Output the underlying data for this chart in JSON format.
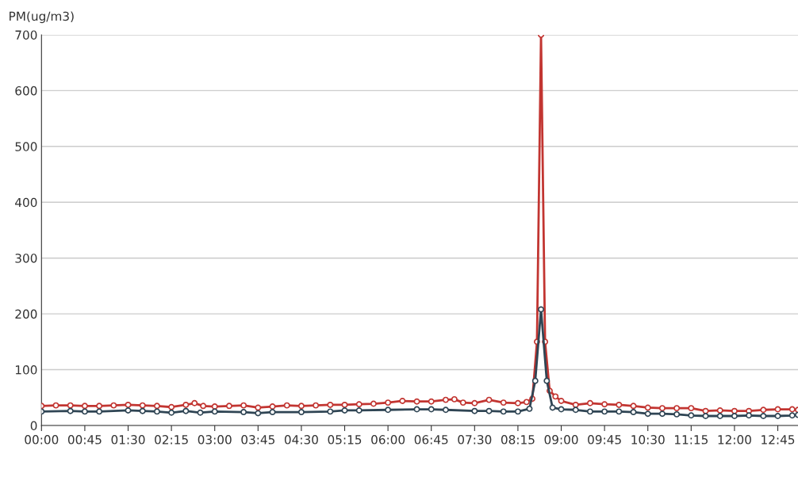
{
  "chart_data": {
    "type": "line",
    "ylabel": "PM(ug/m3)",
    "marker": "circle",
    "grid": "y",
    "xlim": [
      0,
      13.1
    ],
    "ylim": [
      0,
      700
    ],
    "yticks": [
      0,
      100,
      200,
      300,
      400,
      500,
      600,
      700
    ],
    "xticks": [
      {
        "value": 0,
        "label": "00:00"
      },
      {
        "value": 0.75,
        "label": "00:45"
      },
      {
        "value": 1.5,
        "label": "01:30"
      },
      {
        "value": 2.25,
        "label": "02:15"
      },
      {
        "value": 3,
        "label": "03:00"
      },
      {
        "value": 3.75,
        "label": "03:45"
      },
      {
        "value": 4.5,
        "label": "04:30"
      },
      {
        "value": 5.25,
        "label": "05:15"
      },
      {
        "value": 6,
        "label": "06:00"
      },
      {
        "value": 6.75,
        "label": "06:45"
      },
      {
        "value": 7.5,
        "label": "07:30"
      },
      {
        "value": 8.25,
        "label": "08:15"
      },
      {
        "value": 9,
        "label": "09:00"
      },
      {
        "value": 9.75,
        "label": "09:45"
      },
      {
        "value": 10.5,
        "label": "10:30"
      },
      {
        "value": 11.25,
        "label": "11:15"
      },
      {
        "value": 12,
        "label": "12:00"
      },
      {
        "value": 12.75,
        "label": "12:45"
      }
    ],
    "series": [
      {
        "color": "#c23531",
        "x": [
          0,
          0.25,
          0.5,
          0.75,
          1,
          1.25,
          1.5,
          1.75,
          2,
          2.25,
          2.5,
          2.65,
          2.8,
          3,
          3.25,
          3.5,
          3.75,
          4,
          4.25,
          4.5,
          4.75,
          5,
          5.25,
          5.5,
          5.75,
          6,
          6.25,
          6.5,
          6.75,
          7,
          7.15,
          7.3,
          7.5,
          7.75,
          8,
          8.25,
          8.4,
          8.5,
          8.58,
          8.65,
          8.72,
          8.8,
          8.9,
          9,
          9.25,
          9.5,
          9.75,
          10,
          10.25,
          10.5,
          10.75,
          11,
          11.25,
          11.5,
          11.75,
          12,
          12.25,
          12.5,
          12.75,
          13,
          13.1
        ],
        "values": [
          35,
          36,
          36,
          35,
          35,
          36,
          37,
          36,
          35,
          33,
          37,
          40,
          35,
          34,
          35,
          36,
          32,
          34,
          36,
          35,
          36,
          37,
          37,
          38,
          39,
          41,
          44,
          43,
          43,
          46,
          47,
          41,
          40,
          46,
          41,
          40,
          42,
          48,
          150,
          700,
          150,
          62,
          52,
          44,
          37,
          40,
          38,
          37,
          35,
          32,
          31,
          31,
          31,
          26,
          27,
          26,
          26,
          28,
          29,
          29,
          28
        ]
      },
      {
        "color": "#2f4554",
        "x": [
          0,
          0.5,
          0.75,
          1,
          1.5,
          1.75,
          2,
          2.25,
          2.5,
          2.75,
          3,
          3.5,
          3.75,
          4,
          4.5,
          5,
          5.25,
          5.5,
          6,
          6.5,
          6.75,
          7,
          7.5,
          7.75,
          8,
          8.25,
          8.45,
          8.55,
          8.65,
          8.75,
          8.85,
          9,
          9.25,
          9.5,
          9.75,
          10,
          10.25,
          10.5,
          10.75,
          11,
          11.25,
          11.5,
          11.75,
          12,
          12.25,
          12.5,
          12.75,
          13,
          13.1
        ],
        "values": [
          25,
          26,
          25,
          25,
          27,
          26,
          25,
          23,
          26,
          23,
          25,
          24,
          22,
          24,
          24,
          25,
          27,
          27,
          28,
          29,
          29,
          28,
          26,
          26,
          25,
          25,
          30,
          80,
          208,
          80,
          32,
          29,
          28,
          25,
          25,
          25,
          24,
          21,
          21,
          20,
          18,
          17,
          17,
          17,
          18,
          17,
          17,
          18,
          19
        ]
      }
    ]
  }
}
